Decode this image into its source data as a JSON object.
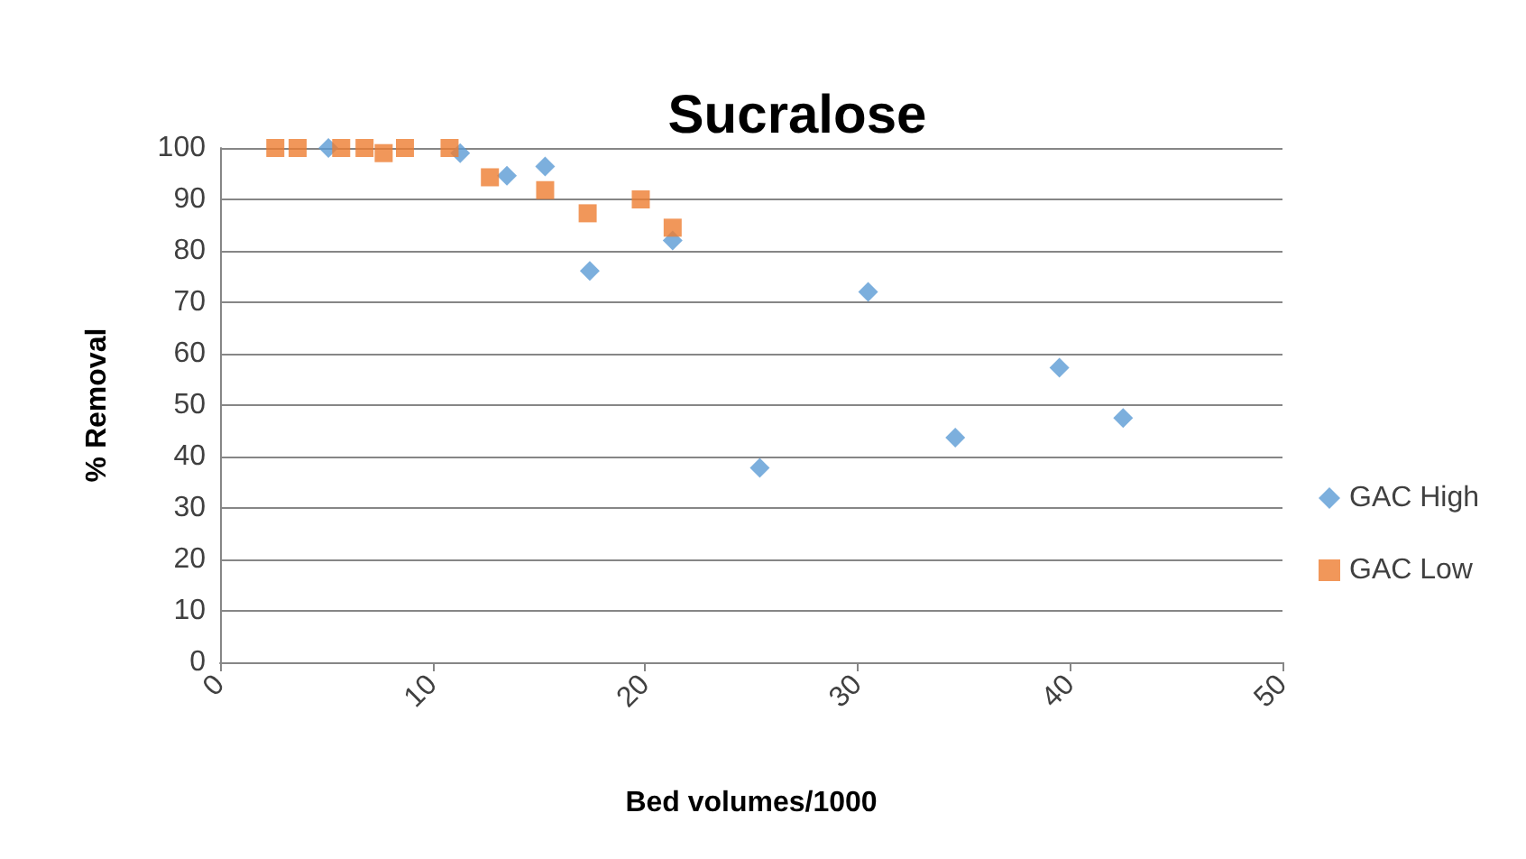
{
  "chart_data": {
    "type": "scatter",
    "title": "Sucralose",
    "xlabel": "Bed volumes/1000",
    "ylabel": "% Removal",
    "xlim": [
      0,
      50
    ],
    "xticks": [
      0,
      10,
      20,
      30,
      40,
      50
    ],
    "ylim": [
      0,
      100
    ],
    "yticks": [
      0,
      10,
      20,
      30,
      40,
      50,
      60,
      70,
      80,
      90,
      100
    ],
    "grid": "y",
    "legend": "right",
    "series": [
      {
        "name": "GAC High",
        "color": "#5b9bd5",
        "marker": "diamond",
        "x": [
          5.1,
          11.3,
          13.5,
          15.3,
          17.4,
          21.3,
          25.4,
          30.5,
          34.6,
          39.5,
          42.5
        ],
        "values": [
          100,
          99,
          94.6,
          96.4,
          76.1,
          82,
          37.8,
          72,
          43.7,
          57.3,
          47.5
        ]
      },
      {
        "name": "GAC Low",
        "color": "#ed7d31",
        "marker": "square",
        "x": [
          2.6,
          3.65,
          5.7,
          6.8,
          7.7,
          8.7,
          10.8,
          12.7,
          15.3,
          17.3,
          19.8,
          21.3
        ],
        "values": [
          100,
          100,
          100,
          100,
          99,
          100,
          100,
          94.3,
          91.8,
          87.3,
          90,
          84.5
        ]
      }
    ]
  }
}
